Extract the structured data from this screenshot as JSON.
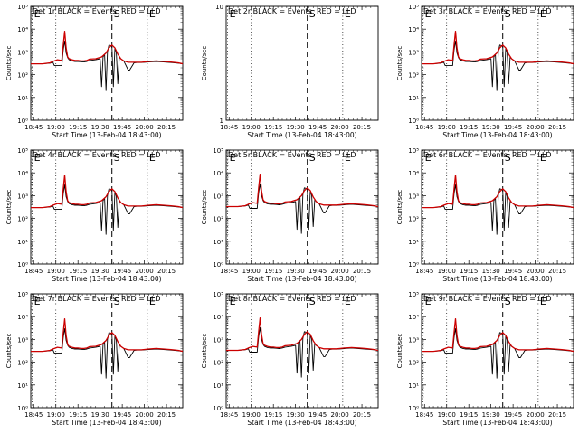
{
  "figure": {
    "xlabel": "Start Time (13-Feb-04 18:43:00)",
    "ylabel": "Counts/sec",
    "legend": "BLACK = Events, RED = LLD"
  },
  "chart_data": {
    "type": "line",
    "x_tick_labels": [
      "18:45",
      "19:00",
      "19:15",
      "19:30",
      "19:45",
      "20:00",
      "20:15"
    ],
    "x_ticks_minutes": [
      2,
      17,
      32,
      47,
      62,
      77,
      92
    ],
    "xlim_minutes": [
      0,
      103
    ],
    "y_tick_labels_log": [
      "10⁰",
      "10¹",
      "10²",
      "10³",
      "10⁴",
      "10⁵"
    ],
    "ylim_log": [
      1,
      100000
    ],
    "y_tick_labels_lin": [
      "1",
      "10"
    ],
    "ylim_lin": [
      1,
      10
    ],
    "markers": [
      {
        "label": "E",
        "minute": 1,
        "style": "dotted"
      },
      {
        "label": "",
        "minute": 17,
        "style": "dotted"
      },
      {
        "label": "S",
        "minute": 55,
        "style": "dashed"
      },
      {
        "label": "E",
        "minute": 79,
        "style": "dotted"
      }
    ],
    "series": [
      {
        "name": "LLD",
        "color": "#cc0000",
        "x": [
          0,
          8,
          13,
          15,
          18,
          21,
          22,
          23,
          24,
          25,
          26,
          28,
          30,
          32,
          34,
          36,
          38,
          40,
          44,
          48,
          51,
          53,
          55,
          57,
          59,
          61,
          63,
          66,
          70,
          75,
          80,
          85,
          90,
          95,
          100,
          103
        ],
        "y": [
          300,
          300,
          330,
          380,
          450,
          420,
          2000,
          8000,
          1500,
          600,
          500,
          450,
          420,
          420,
          400,
          400,
          420,
          480,
          500,
          600,
          900,
          1500,
          2000,
          1500,
          800,
          500,
          400,
          350,
          350,
          350,
          380,
          400,
          380,
          360,
          330,
          300
        ]
      },
      {
        "name": "Events",
        "color": "#000000",
        "x": [
          0,
          8,
          13,
          15,
          16,
          21,
          22,
          23,
          24,
          25,
          26,
          28,
          30,
          32,
          34,
          36,
          38,
          40,
          44,
          47,
          48,
          49,
          50,
          51,
          52,
          53,
          55,
          56,
          57,
          58,
          59,
          60,
          61,
          63,
          66,
          67,
          70,
          72,
          75,
          80,
          85,
          90,
          95,
          100,
          103
        ],
        "y": [
          300,
          300,
          320,
          350,
          250,
          250,
          1200,
          3000,
          900,
          550,
          450,
          400,
          380,
          380,
          370,
          360,
          380,
          420,
          450,
          500,
          30,
          600,
          800,
          20,
          1000,
          2000,
          1800,
          30,
          1500,
          900,
          40,
          600,
          500,
          400,
          160,
          160,
          330,
          340,
          340,
          360,
          380,
          360,
          340,
          320,
          300
        ]
      }
    ],
    "panels": [
      {
        "title": "Det 1r",
        "scale": "log",
        "has_data": true,
        "scale_factor": 1.0,
        "ylabel": "Counts/sec"
      },
      {
        "title": "Det 2r",
        "scale": "lin",
        "has_data": false,
        "scale_factor": 1.0,
        "ylabel": "Counts/sec"
      },
      {
        "title": "Det 3r",
        "scale": "log",
        "has_data": true,
        "scale_factor": 1.0,
        "ylabel": "Counts/sec"
      },
      {
        "title": "Det 4r",
        "scale": "log",
        "has_data": true,
        "scale_factor": 1.0,
        "ylabel": "Counts/sec"
      },
      {
        "title": "Det 5r",
        "scale": "log",
        "has_data": true,
        "scale_factor": 1.1,
        "ylabel": "Counts/sec"
      },
      {
        "title": "Det 6r",
        "scale": "log",
        "has_data": true,
        "scale_factor": 1.0,
        "ylabel": "Counts/sec"
      },
      {
        "title": "Det 7r",
        "scale": "log",
        "has_data": true,
        "scale_factor": 1.0,
        "ylabel": "Counts/sec"
      },
      {
        "title": "Det 8r",
        "scale": "log",
        "has_data": true,
        "scale_factor": 1.1,
        "ylabel": "Counts/sec"
      },
      {
        "title": "Det 9r",
        "scale": "log",
        "has_data": true,
        "scale_factor": 1.0,
        "ylabel": "Counts/sec"
      }
    ]
  }
}
